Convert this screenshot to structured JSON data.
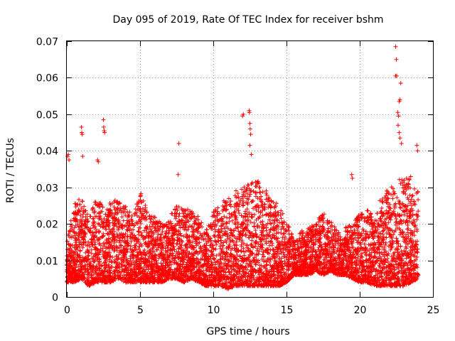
{
  "chart_data": {
    "type": "scatter",
    "title": "Day 095 of 2019, Rate Of TEC Index for receiver bshm",
    "xlabel": "GPS time / hours",
    "ylabel": "ROTI / TECUs",
    "xlim": [
      0,
      25
    ],
    "ylim": [
      0,
      0.07
    ],
    "x_ticks": [
      "0",
      "5",
      "10",
      "15",
      "20",
      "25"
    ],
    "y_ticks": [
      "0",
      "0.01",
      "0.02",
      "0.03",
      "0.04",
      "0.05",
      "0.06",
      "0.07"
    ],
    "grid": true,
    "marker": "+",
    "color": "#ff0000",
    "density_profile": {
      "hours": [
        0,
        0.5,
        1,
        1.5,
        2,
        2.5,
        3,
        3.5,
        4,
        4.5,
        5,
        5.5,
        6,
        6.5,
        7,
        7.5,
        8,
        8.5,
        9,
        9.5,
        10,
        10.5,
        11,
        11.5,
        12,
        12.5,
        13,
        13.5,
        14,
        14.5,
        15,
        15.5,
        16,
        16.5,
        17,
        17.5,
        18,
        18.5,
        19,
        19.5,
        20,
        20.5,
        21,
        21.5,
        22,
        22.5,
        23,
        23.5,
        24
      ],
      "low": [
        0.004,
        0.004,
        0.005,
        0.003,
        0.004,
        0.004,
        0.004,
        0.005,
        0.004,
        0.004,
        0.004,
        0.004,
        0.004,
        0.004,
        0.005,
        0.005,
        0.004,
        0.005,
        0.004,
        0.003,
        0.003,
        0.003,
        0.002,
        0.003,
        0.003,
        0.003,
        0.003,
        0.003,
        0.003,
        0.003,
        0.004,
        0.006,
        0.006,
        0.006,
        0.007,
        0.006,
        0.007,
        0.006,
        0.006,
        0.005,
        0.004,
        0.004,
        0.003,
        0.003,
        0.003,
        0.003,
        0.003,
        0.004,
        0.005
      ],
      "high": [
        0.015,
        0.026,
        0.027,
        0.022,
        0.028,
        0.025,
        0.026,
        0.027,
        0.025,
        0.022,
        0.029,
        0.024,
        0.022,
        0.02,
        0.021,
        0.027,
        0.024,
        0.024,
        0.022,
        0.018,
        0.024,
        0.026,
        0.027,
        0.029,
        0.03,
        0.031,
        0.032,
        0.03,
        0.027,
        0.025,
        0.021,
        0.016,
        0.018,
        0.019,
        0.021,
        0.023,
        0.021,
        0.018,
        0.019,
        0.02,
        0.023,
        0.024,
        0.022,
        0.028,
        0.03,
        0.032,
        0.033,
        0.033,
        0.029
      ],
      "points_per_hour": 260
    },
    "outliers": [
      {
        "x": 0.05,
        "y": 0.0385
      },
      {
        "x": 0.1,
        "y": 0.039
      },
      {
        "x": 0.15,
        "y": 0.0375
      },
      {
        "x": 1.0,
        "y": 0.0465
      },
      {
        "x": 1.02,
        "y": 0.045
      },
      {
        "x": 1.05,
        "y": 0.0445
      },
      {
        "x": 1.08,
        "y": 0.0385
      },
      {
        "x": 2.1,
        "y": 0.0375
      },
      {
        "x": 2.15,
        "y": 0.037
      },
      {
        "x": 2.5,
        "y": 0.0485
      },
      {
        "x": 2.52,
        "y": 0.0465
      },
      {
        "x": 2.55,
        "y": 0.0455
      },
      {
        "x": 2.58,
        "y": 0.045
      },
      {
        "x": 7.65,
        "y": 0.042
      },
      {
        "x": 7.6,
        "y": 0.0335
      },
      {
        "x": 12.0,
        "y": 0.0495
      },
      {
        "x": 12.05,
        "y": 0.05
      },
      {
        "x": 12.45,
        "y": 0.051
      },
      {
        "x": 12.47,
        "y": 0.0505
      },
      {
        "x": 12.5,
        "y": 0.0475
      },
      {
        "x": 12.52,
        "y": 0.046
      },
      {
        "x": 12.55,
        "y": 0.0445
      },
      {
        "x": 12.5,
        "y": 0.0415
      },
      {
        "x": 12.6,
        "y": 0.039
      },
      {
        "x": 19.45,
        "y": 0.0335
      },
      {
        "x": 19.5,
        "y": 0.0325
      },
      {
        "x": 22.45,
        "y": 0.0685
      },
      {
        "x": 22.5,
        "y": 0.065
      },
      {
        "x": 22.45,
        "y": 0.0605
      },
      {
        "x": 22.52,
        "y": 0.0605
      },
      {
        "x": 22.8,
        "y": 0.0585
      },
      {
        "x": 22.7,
        "y": 0.0535
      },
      {
        "x": 22.75,
        "y": 0.054
      },
      {
        "x": 22.6,
        "y": 0.0505
      },
      {
        "x": 22.65,
        "y": 0.0495
      },
      {
        "x": 22.62,
        "y": 0.047
      },
      {
        "x": 22.7,
        "y": 0.045
      },
      {
        "x": 22.75,
        "y": 0.0435
      },
      {
        "x": 22.85,
        "y": 0.042
      },
      {
        "x": 23.9,
        "y": 0.0415
      },
      {
        "x": 23.95,
        "y": 0.04
      }
    ]
  }
}
